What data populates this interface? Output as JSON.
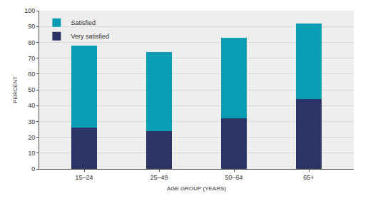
{
  "chart_data": {
    "type": "bar",
    "stacked": true,
    "categories": [
      "15–24",
      "25–49",
      "50–64",
      "65+"
    ],
    "series": [
      {
        "name": "Very satisfied",
        "color": "#2b3466",
        "values": [
          26,
          24,
          32,
          44
        ]
      },
      {
        "name": "Satisfied",
        "color": "#0a9cb3",
        "values": [
          52,
          50,
          51,
          48
        ]
      }
    ],
    "xlabel": "AGE GROUP (YEARS)",
    "ylabel": "PERCENT",
    "ylim": [
      0,
      100
    ],
    "yticks": [
      0,
      10,
      20,
      30,
      40,
      50,
      60,
      70,
      80,
      90,
      100
    ],
    "grid": true,
    "legend": "top left"
  }
}
